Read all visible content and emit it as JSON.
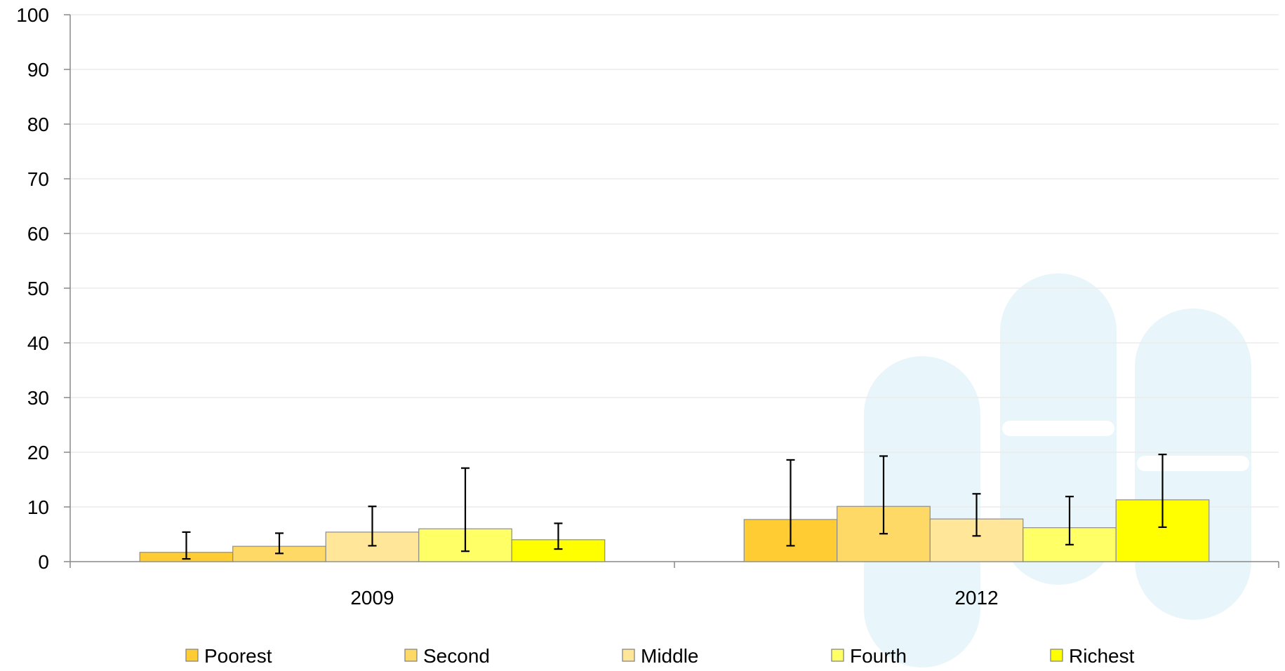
{
  "chart_data": {
    "type": "bar",
    "categories": [
      "2009",
      "2012"
    ],
    "ylim": [
      0,
      100
    ],
    "yticks": [
      0,
      10,
      20,
      30,
      40,
      50,
      60,
      70,
      80,
      90,
      100
    ],
    "grid": true,
    "legend_position": "bottom",
    "error_bars": true,
    "series": [
      {
        "name": "Poorest",
        "color": "#FFCC33",
        "values": [
          1.7,
          7.7
        ],
        "err_low": [
          0.5,
          2.9
        ],
        "err_high": [
          5.4,
          18.6
        ]
      },
      {
        "name": "Second",
        "color": "#FFD966",
        "values": [
          2.8,
          10.1
        ],
        "err_low": [
          1.5,
          5.1
        ],
        "err_high": [
          5.2,
          19.3
        ]
      },
      {
        "name": "Middle",
        "color": "#FFE699",
        "values": [
          5.4,
          7.8
        ],
        "err_low": [
          2.9,
          4.7
        ],
        "err_high": [
          10.1,
          12.4
        ]
      },
      {
        "name": "Fourth",
        "color": "#FFFF66",
        "values": [
          6.0,
          6.2
        ],
        "err_low": [
          1.9,
          3.1
        ],
        "err_high": [
          17.1,
          11.9
        ]
      },
      {
        "name": "Richest",
        "color": "#FFFF00",
        "values": [
          4.0,
          11.3
        ],
        "err_low": [
          2.3,
          6.3
        ],
        "err_high": [
          7.0,
          19.6
        ]
      }
    ]
  }
}
